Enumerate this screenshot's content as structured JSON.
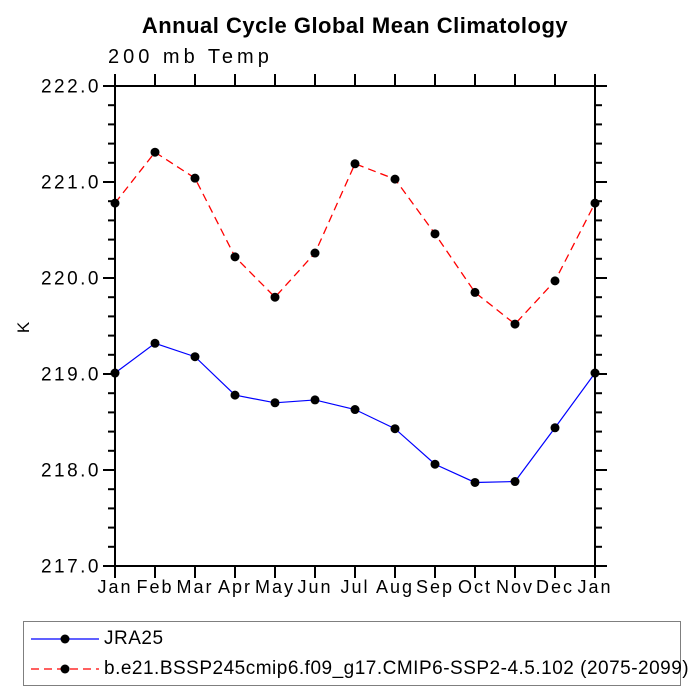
{
  "chart_data": {
    "type": "line",
    "title": "Annual Cycle Global Mean Climatology",
    "subtitle": "200 mb Temp",
    "xlabel": "",
    "ylabel": "K",
    "categories": [
      "Jan",
      "Feb",
      "Mar",
      "Apr",
      "May",
      "Jun",
      "Jul",
      "Aug",
      "Sep",
      "Oct",
      "Nov",
      "Dec",
      "Jan"
    ],
    "ylim": [
      217.0,
      222.0
    ],
    "ytick_interval": 1.0,
    "yminor_interval": 0.2,
    "ytick_labels": [
      "217.0",
      "218.0",
      "219.0",
      "220.0",
      "221.0",
      "222.0"
    ],
    "grid": false,
    "legend_position": "bottom",
    "series": [
      {
        "name": "JRA25",
        "color": "#0000ff",
        "style": "solid",
        "line_width": 1.2,
        "marker": "circle",
        "marker_color": "#000000",
        "values": [
          219.01,
          219.32,
          219.18,
          218.78,
          218.7,
          218.73,
          218.63,
          218.43,
          218.06,
          217.87,
          217.88,
          218.44,
          219.01
        ]
      },
      {
        "name": "b.e21.BSSP245cmip6.f09_g17.CMIP6-SSP2-4.5.102 (2075-2099)",
        "color": "#ff0000",
        "style": "dashed",
        "dash_pattern": "8,5",
        "line_width": 1.3,
        "marker": "circle",
        "marker_color": "#000000",
        "values": [
          220.78,
          221.31,
          221.04,
          220.22,
          219.8,
          220.26,
          221.19,
          221.03,
          220.46,
          219.85,
          219.52,
          219.97,
          220.78
        ]
      }
    ]
  },
  "colors": {
    "axis": "#000000",
    "legend_border": "#7f7f7f",
    "background": "#ffffff"
  }
}
